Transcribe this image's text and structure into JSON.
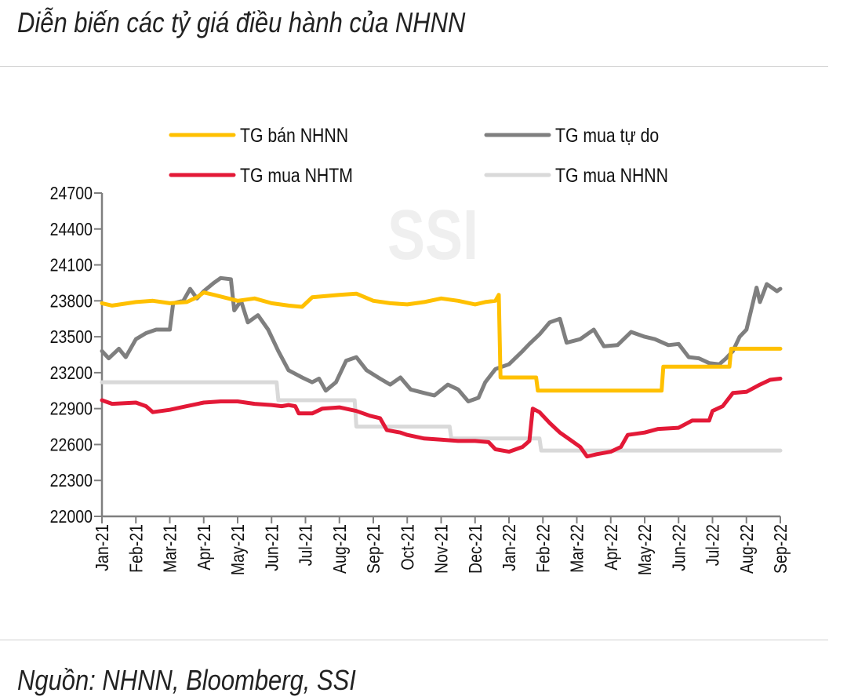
{
  "title": "Diễn biến các tỷ giá điều hành của NHNN",
  "source": "Nguồn: NHNN, Bloomberg, SSI",
  "watermark": "SSI",
  "chart_data": {
    "type": "line",
    "title": "Diễn biến các tỷ giá điều hành của NHNN",
    "xlabel": "",
    "ylabel": "",
    "ylim": [
      22000,
      24700
    ],
    "yticks": [
      "24700",
      "24400",
      "24100",
      "23800",
      "23500",
      "23200",
      "22900",
      "22600",
      "22300",
      "22000"
    ],
    "categories": [
      "Jan-21",
      "Feb-21",
      "Mar-21",
      "Apr-21",
      "May-21",
      "Jun-21",
      "Jul-21",
      "Aug-21",
      "Sep-21",
      "Oct-21",
      "Nov-21",
      "Dec-21",
      "Jan-22",
      "Feb-22",
      "Mar-22",
      "Apr-22",
      "May-22",
      "Jun-22",
      "Jul-22",
      "Aug-22",
      "Sep-22"
    ],
    "x_note": "point x = month index (0 = Jan-21, 20 = Sep-22)",
    "legend_position": "top",
    "series": [
      {
        "name": "TG bán NHNN",
        "color": "#FFC000",
        "points": [
          [
            0,
            23780
          ],
          [
            0.3,
            23760
          ],
          [
            1,
            23790
          ],
          [
            1.5,
            23800
          ],
          [
            2,
            23780
          ],
          [
            2.5,
            23790
          ],
          [
            2.8,
            23830
          ],
          [
            3,
            23870
          ],
          [
            3.3,
            23850
          ],
          [
            4,
            23800
          ],
          [
            4.5,
            23820
          ],
          [
            5,
            23780
          ],
          [
            5.5,
            23760
          ],
          [
            5.9,
            23750
          ],
          [
            6.2,
            23830
          ],
          [
            7,
            23850
          ],
          [
            7.5,
            23860
          ],
          [
            8,
            23800
          ],
          [
            8.5,
            23780
          ],
          [
            9,
            23770
          ],
          [
            9.5,
            23790
          ],
          [
            10,
            23820
          ],
          [
            10.5,
            23800
          ],
          [
            11,
            23770
          ],
          [
            11.3,
            23790
          ],
          [
            11.6,
            23800
          ],
          [
            11.7,
            23850
          ],
          [
            11.75,
            23160
          ],
          [
            12.8,
            23160
          ],
          [
            12.85,
            23050
          ],
          [
            16.5,
            23050
          ],
          [
            16.55,
            23250
          ],
          [
            18.5,
            23250
          ],
          [
            18.55,
            23400
          ],
          [
            20,
            23400
          ]
        ]
      },
      {
        "name": "TG mua tự do",
        "color": "#7F7F7F",
        "points": [
          [
            0,
            23380
          ],
          [
            0.2,
            23320
          ],
          [
            0.5,
            23400
          ],
          [
            0.7,
            23330
          ],
          [
            1,
            23480
          ],
          [
            1.3,
            23530
          ],
          [
            1.6,
            23560
          ],
          [
            2,
            23560
          ],
          [
            2.1,
            23780
          ],
          [
            2.4,
            23800
          ],
          [
            2.6,
            23900
          ],
          [
            2.8,
            23820
          ],
          [
            3,
            23880
          ],
          [
            3.3,
            23950
          ],
          [
            3.5,
            23990
          ],
          [
            3.8,
            23980
          ],
          [
            3.9,
            23720
          ],
          [
            4.1,
            23800
          ],
          [
            4.3,
            23620
          ],
          [
            4.6,
            23680
          ],
          [
            4.9,
            23560
          ],
          [
            5.2,
            23380
          ],
          [
            5.5,
            23220
          ],
          [
            5.9,
            23160
          ],
          [
            6.2,
            23120
          ],
          [
            6.4,
            23150
          ],
          [
            6.6,
            23050
          ],
          [
            6.9,
            23120
          ],
          [
            7.2,
            23300
          ],
          [
            7.5,
            23330
          ],
          [
            7.8,
            23220
          ],
          [
            8.2,
            23150
          ],
          [
            8.5,
            23100
          ],
          [
            8.8,
            23160
          ],
          [
            9.1,
            23060
          ],
          [
            9.5,
            23030
          ],
          [
            9.8,
            23010
          ],
          [
            10.2,
            23100
          ],
          [
            10.5,
            23060
          ],
          [
            10.8,
            22960
          ],
          [
            11.1,
            22990
          ],
          [
            11.3,
            23120
          ],
          [
            11.6,
            23230
          ],
          [
            12,
            23270
          ],
          [
            12.4,
            23380
          ],
          [
            12.6,
            23440
          ],
          [
            12.9,
            23520
          ],
          [
            13.2,
            23620
          ],
          [
            13.5,
            23650
          ],
          [
            13.7,
            23450
          ],
          [
            14.1,
            23480
          ],
          [
            14.5,
            23560
          ],
          [
            14.8,
            23420
          ],
          [
            15.2,
            23430
          ],
          [
            15.6,
            23540
          ],
          [
            16,
            23500
          ],
          [
            16.3,
            23480
          ],
          [
            16.7,
            23430
          ],
          [
            17,
            23440
          ],
          [
            17.3,
            23330
          ],
          [
            17.6,
            23320
          ],
          [
            17.9,
            23280
          ],
          [
            18.2,
            23270
          ],
          [
            18.4,
            23320
          ],
          [
            18.6,
            23380
          ],
          [
            18.8,
            23500
          ],
          [
            19,
            23560
          ],
          [
            19.3,
            23910
          ],
          [
            19.4,
            23790
          ],
          [
            19.6,
            23940
          ],
          [
            19.9,
            23880
          ],
          [
            20,
            23900
          ]
        ]
      },
      {
        "name": "TG mua NHTM",
        "color": "#E31937",
        "points": [
          [
            0,
            22970
          ],
          [
            0.3,
            22940
          ],
          [
            1,
            22950
          ],
          [
            1.3,
            22920
          ],
          [
            1.5,
            22870
          ],
          [
            2,
            22890
          ],
          [
            2.5,
            22920
          ],
          [
            3,
            22950
          ],
          [
            3.5,
            22960
          ],
          [
            4,
            22960
          ],
          [
            4.5,
            22940
          ],
          [
            5,
            22930
          ],
          [
            5.3,
            22920
          ],
          [
            5.5,
            22930
          ],
          [
            5.7,
            22920
          ],
          [
            5.8,
            22860
          ],
          [
            6.2,
            22860
          ],
          [
            6.5,
            22900
          ],
          [
            7,
            22910
          ],
          [
            7.5,
            22880
          ],
          [
            7.9,
            22840
          ],
          [
            8.2,
            22820
          ],
          [
            8.4,
            22720
          ],
          [
            8.8,
            22700
          ],
          [
            9,
            22680
          ],
          [
            9.5,
            22650
          ],
          [
            10,
            22640
          ],
          [
            10.5,
            22630
          ],
          [
            11,
            22630
          ],
          [
            11.4,
            22620
          ],
          [
            11.6,
            22560
          ],
          [
            12,
            22540
          ],
          [
            12.4,
            22580
          ],
          [
            12.6,
            22630
          ],
          [
            12.7,
            22900
          ],
          [
            12.9,
            22870
          ],
          [
            13.2,
            22780
          ],
          [
            13.5,
            22700
          ],
          [
            13.8,
            22640
          ],
          [
            14.1,
            22580
          ],
          [
            14.3,
            22500
          ],
          [
            14.6,
            22520
          ],
          [
            15,
            22540
          ],
          [
            15.3,
            22580
          ],
          [
            15.5,
            22680
          ],
          [
            16,
            22700
          ],
          [
            16.4,
            22730
          ],
          [
            17,
            22740
          ],
          [
            17.4,
            22800
          ],
          [
            17.9,
            22800
          ],
          [
            18,
            22880
          ],
          [
            18.3,
            22920
          ],
          [
            18.6,
            23030
          ],
          [
            19,
            23040
          ],
          [
            19.4,
            23100
          ],
          [
            19.7,
            23140
          ],
          [
            20,
            23150
          ]
        ]
      },
      {
        "name": "TG mua NHNN",
        "color": "#D9D9D9",
        "points": [
          [
            0,
            23120
          ],
          [
            5.15,
            23120
          ],
          [
            5.2,
            22970
          ],
          [
            7.45,
            22970
          ],
          [
            7.5,
            22750
          ],
          [
            10.25,
            22750
          ],
          [
            10.3,
            22650
          ],
          [
            12.9,
            22650
          ],
          [
            12.95,
            22550
          ],
          [
            20,
            22550
          ]
        ]
      }
    ]
  }
}
